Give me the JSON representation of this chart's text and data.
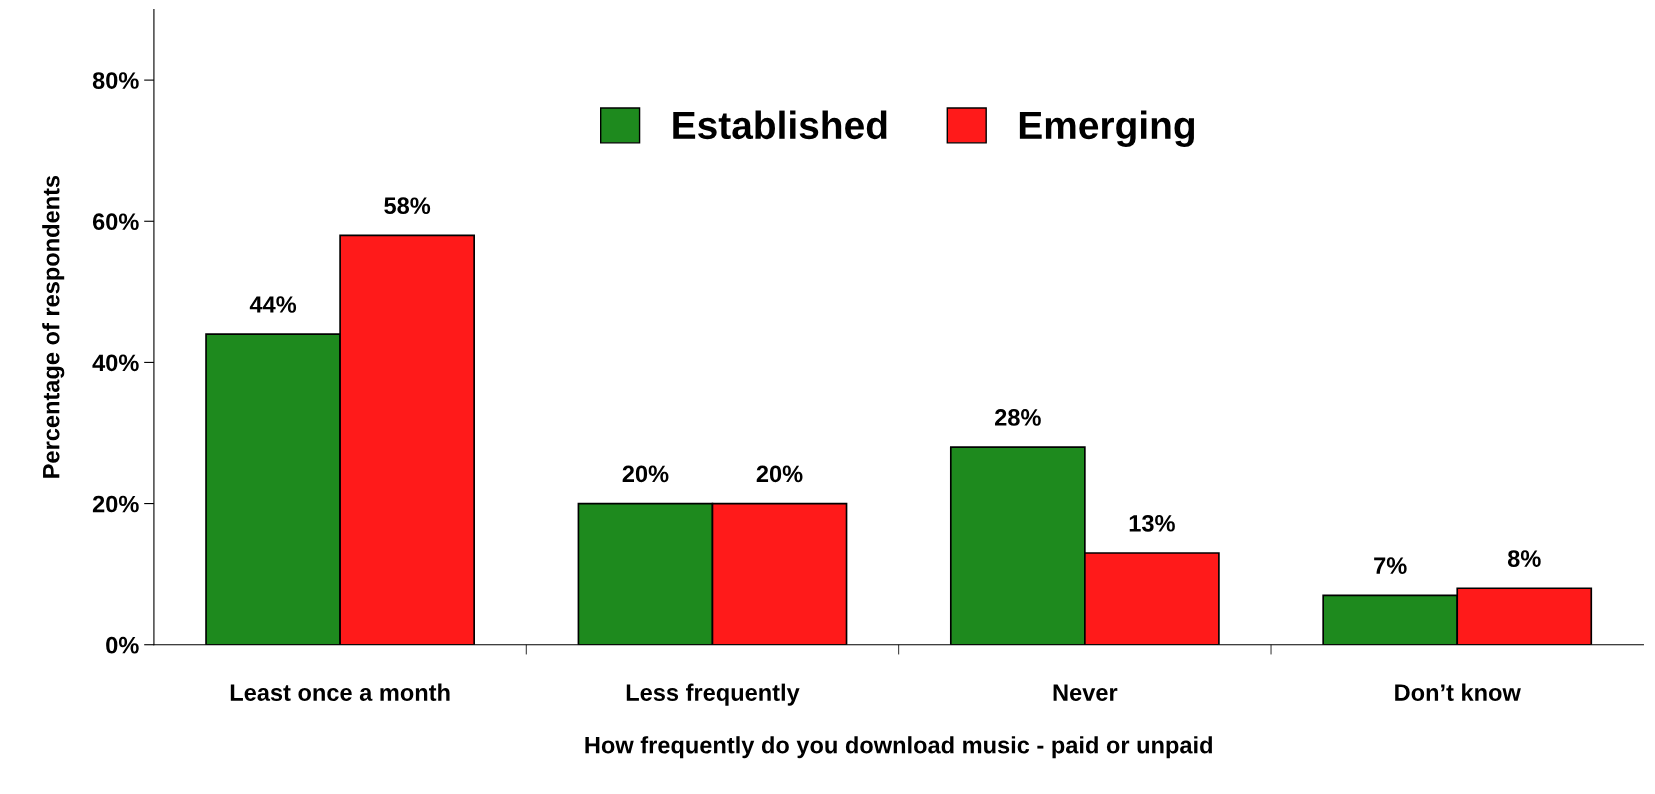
{
  "chart_data": {
    "type": "bar",
    "xlabel": "How frequently do you download music - paid or unpaid",
    "ylabel": "Percentage of respondents",
    "categories": [
      "Least once a month",
      "Less frequently",
      "Never",
      "Don’t know"
    ],
    "series": [
      {
        "name": "Established",
        "color": "#1e8a1e",
        "values": [
          44,
          20,
          28,
          7
        ],
        "value_labels": [
          "44%",
          "20%",
          "28%",
          "7%"
        ]
      },
      {
        "name": "Emerging",
        "color": "#ff1a1a",
        "values": [
          58,
          20,
          13,
          8
        ],
        "value_labels": [
          "58%",
          "20%",
          "13%",
          "8%"
        ]
      }
    ],
    "ylim": [
      0,
      90
    ],
    "yticks": [
      {
        "value": 0,
        "label": "0%"
      },
      {
        "value": 20,
        "label": "20%"
      },
      {
        "value": 40,
        "label": "40%"
      },
      {
        "value": 60,
        "label": "60%"
      },
      {
        "value": 80,
        "label": "80%"
      }
    ],
    "grid": false,
    "legend": "top"
  }
}
